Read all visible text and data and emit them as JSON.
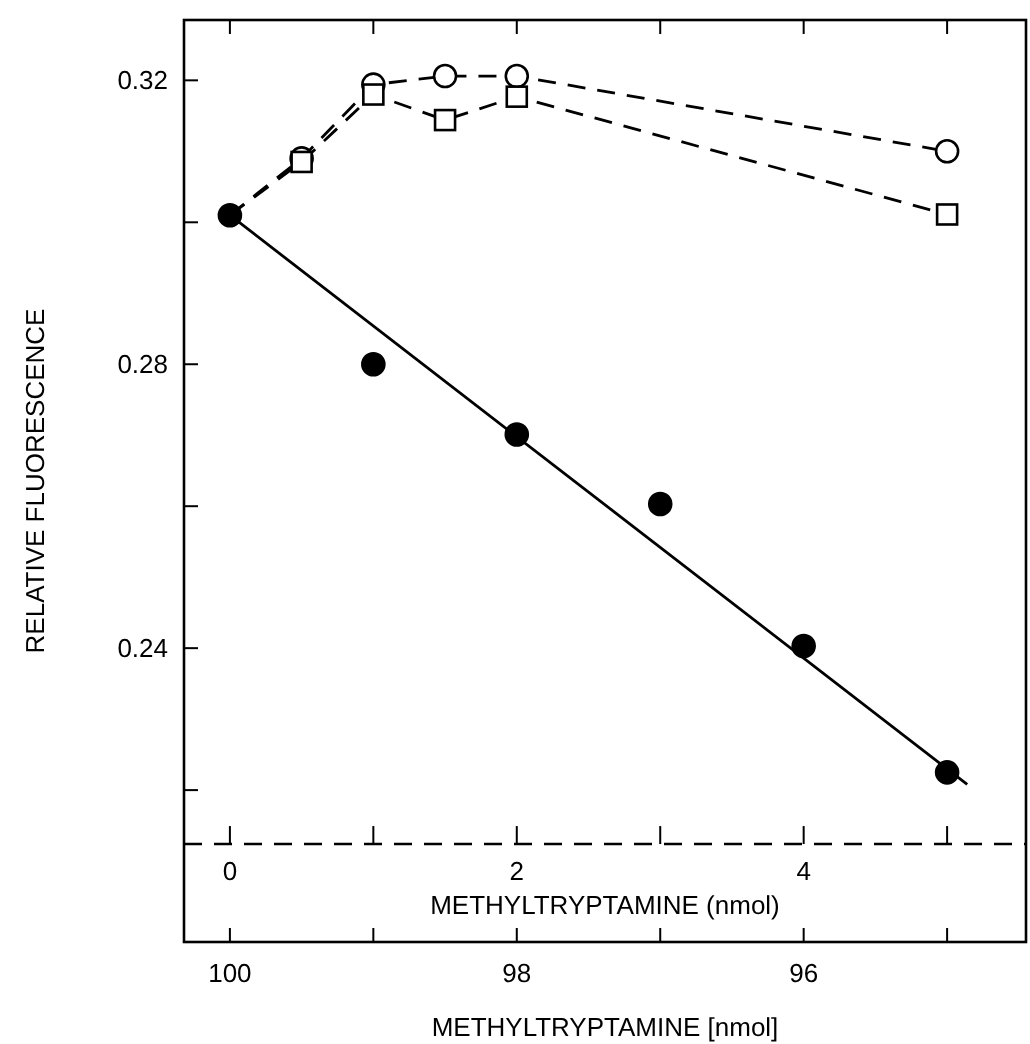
{
  "chart_data": {
    "type": "scatter",
    "xlabel": "METHYLTRYPTAMINE [nmol]",
    "ylabel": "RELATIVE FLUORESCENCE",
    "x2label": "METHYLTRYPTAMINE (nmol)",
    "xlim": [
      100.32,
      94.45
    ],
    "xticks": [
      100,
      {
        "value": 99,
        "label": null
      },
      98,
      {
        "value": 97,
        "label": null
      },
      96,
      {
        "value": 95,
        "label": null
      }
    ],
    "x2lim": [
      -0.32,
      5.55
    ],
    "x2ticks": [
      0,
      {
        "value": 1,
        "label": null
      },
      2,
      {
        "value": 3,
        "label": null
      },
      4,
      {
        "value": 5,
        "label": null
      }
    ],
    "ylim": [
      0.1986,
      0.3285
    ],
    "yticks": [
      {
        "value": 0.22,
        "label": null
      },
      0.24,
      {
        "value": 0.26,
        "label": null
      },
      0.28,
      {
        "value": 0.3,
        "label": null
      },
      0.32
    ],
    "grid": false,
    "ref_lines": [
      {
        "axis": "y",
        "value": 0.2124,
        "label": null,
        "line_style": "dashed",
        "color": "#000000"
      }
    ],
    "series": [
      {
        "type": "line",
        "marker": "circle",
        "line_style": "dashed",
        "color": "#000000",
        "x": [
          100,
          99.5,
          99,
          98.5,
          98,
          95
        ],
        "values": [
          0.301,
          0.309,
          0.3194,
          0.3206,
          0.3206,
          0.31
        ]
      },
      {
        "type": "line",
        "marker": "square",
        "line_style": "dashed",
        "color": "#000000",
        "x": [
          100,
          99.5,
          99,
          98.5,
          98,
          95
        ],
        "values": [
          0.301,
          0.3085,
          0.318,
          0.3144,
          0.3177,
          0.3011
        ]
      },
      {
        "type": "line",
        "marker": "none",
        "line_style": "solid",
        "color": "#000000",
        "x": [
          100,
          94.86
        ],
        "values": [
          0.301,
          0.2208
        ]
      },
      {
        "marker": "circle",
        "color": "#000000",
        "x": [
          100,
          99,
          98,
          97,
          96,
          95
        ],
        "values": [
          0.301,
          0.28,
          0.2701,
          0.2603,
          0.2403,
          0.2225
        ]
      }
    ]
  }
}
